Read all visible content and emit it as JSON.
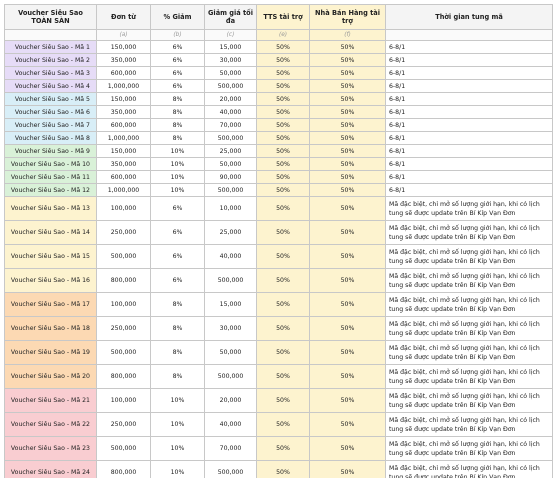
{
  "headers": {
    "voucher": "Voucher Siêu Sao",
    "voucher_sub": "TOÀN SÀN",
    "don_tu": "Đơn từ",
    "pct_giam": "% Giảm",
    "giam_gia": "Giảm giá tối đa",
    "tts": "TTS tài trợ",
    "nbh": "Nhà Bán Hàng tài trợ",
    "thoi_gian": "Thời gian tung mã"
  },
  "subheaders": [
    "(a)",
    "(b)",
    "(c)",
    "(e)",
    "(f)"
  ],
  "colors": {
    "purple": "#e6dcf7",
    "blue": "#d8eef7",
    "green": "#d9f1d8",
    "yellow": "#fdf3cf",
    "orange": "#fcd9b3",
    "pink": "#f9cdd1",
    "header": "#f4f4f4",
    "subheader": "#fafafa"
  },
  "rows": [
    {
      "name": "Voucher Siêu Sao - Mã 1",
      "don_tu": "150,000",
      "pct": "6%",
      "max": "15,000",
      "tts": "50%",
      "nbh": "50%",
      "time": "6-8/1",
      "group": "purple"
    },
    {
      "name": "Voucher Siêu Sao - Mã 2",
      "don_tu": "350,000",
      "pct": "6%",
      "max": "30,000",
      "tts": "50%",
      "nbh": "50%",
      "time": "6-8/1",
      "group": "purple"
    },
    {
      "name": "Voucher Siêu Sao - Mã 3",
      "don_tu": "600,000",
      "pct": "6%",
      "max": "50,000",
      "tts": "50%",
      "nbh": "50%",
      "time": "6-8/1",
      "group": "purple"
    },
    {
      "name": "Voucher Siêu Sao - Mã 4",
      "don_tu": "1,000,000",
      "pct": "6%",
      "max": "500,000",
      "tts": "50%",
      "nbh": "50%",
      "time": "6-8/1",
      "group": "purple"
    },
    {
      "name": "Voucher Siêu Sao - Mã 5",
      "don_tu": "150,000",
      "pct": "8%",
      "max": "20,000",
      "tts": "50%",
      "nbh": "50%",
      "time": "6-8/1",
      "group": "blue"
    },
    {
      "name": "Voucher Siêu Sao - Mã 6",
      "don_tu": "350,000",
      "pct": "8%",
      "max": "40,000",
      "tts": "50%",
      "nbh": "50%",
      "time": "6-8/1",
      "group": "blue"
    },
    {
      "name": "Voucher Siêu Sao - Mã 7",
      "don_tu": "600,000",
      "pct": "8%",
      "max": "70,000",
      "tts": "50%",
      "nbh": "50%",
      "time": "6-8/1",
      "group": "blue"
    },
    {
      "name": "Voucher Siêu Sao - Mã 8",
      "don_tu": "1,000,000",
      "pct": "8%",
      "max": "500,000",
      "tts": "50%",
      "nbh": "50%",
      "time": "6-8/1",
      "group": "blue"
    },
    {
      "name": "Voucher Siêu Sao - Mã 9",
      "don_tu": "150,000",
      "pct": "10%",
      "max": "25,000",
      "tts": "50%",
      "nbh": "50%",
      "time": "6-8/1",
      "group": "green"
    },
    {
      "name": "Voucher Siêu Sao - Mã 10",
      "don_tu": "350,000",
      "pct": "10%",
      "max": "50,000",
      "tts": "50%",
      "nbh": "50%",
      "time": "6-8/1",
      "group": "green"
    },
    {
      "name": "Voucher Siêu Sao - Mã 11",
      "don_tu": "600,000",
      "pct": "10%",
      "max": "90,000",
      "tts": "50%",
      "nbh": "50%",
      "time": "6-8/1",
      "group": "green"
    },
    {
      "name": "Voucher Siêu Sao - Mã 12",
      "don_tu": "1,000,000",
      "pct": "10%",
      "max": "500,000",
      "tts": "50%",
      "nbh": "50%",
      "time": "6-8/1",
      "group": "green"
    },
    {
      "name": "Voucher Siêu Sao - Mã 13",
      "don_tu": "100,000",
      "pct": "6%",
      "max": "10,000",
      "tts": "50%",
      "nbh": "50%",
      "time": "Mã đặc biệt, chỉ mở số lượng giới hạn, khi có lịch tung sẽ được update trên Bí Kíp Vạn Đơn",
      "group": "yellow"
    },
    {
      "name": "Voucher Siêu Sao - Mã 14",
      "don_tu": "250,000",
      "pct": "6%",
      "max": "25,000",
      "tts": "50%",
      "nbh": "50%",
      "time": "Mã đặc biệt, chỉ mở số lượng giới hạn, khi có lịch tung sẽ được update trên Bí Kíp Vạn Đơn",
      "group": "yellow"
    },
    {
      "name": "Voucher Siêu Sao - Mã 15",
      "don_tu": "500,000",
      "pct": "6%",
      "max": "40,000",
      "tts": "50%",
      "nbh": "50%",
      "time": "Mã đặc biệt, chỉ mở số lượng giới hạn, khi có lịch tung sẽ được update trên Bí Kíp Vạn Đơn",
      "group": "yellow"
    },
    {
      "name": "Voucher Siêu Sao - Mã 16",
      "don_tu": "800,000",
      "pct": "6%",
      "max": "500,000",
      "tts": "50%",
      "nbh": "50%",
      "time": "Mã đặc biệt, chỉ mở số lượng giới hạn, khi có lịch tung sẽ được update trên Bí Kíp Vạn Đơn",
      "group": "yellow"
    },
    {
      "name": "Voucher Siêu Sao - Mã 17",
      "don_tu": "100,000",
      "pct": "8%",
      "max": "15,000",
      "tts": "50%",
      "nbh": "50%",
      "time": "Mã đặc biệt, chỉ mở số lượng giới hạn, khi có lịch tung sẽ được update trên Bí Kíp Vạn Đơn",
      "group": "orange"
    },
    {
      "name": "Voucher Siêu Sao - Mã 18",
      "don_tu": "250,000",
      "pct": "8%",
      "max": "30,000",
      "tts": "50%",
      "nbh": "50%",
      "time": "Mã đặc biệt, chỉ mở số lượng giới hạn, khi có lịch tung sẽ được update trên Bí Kíp Vạn Đơn",
      "group": "orange"
    },
    {
      "name": "Voucher Siêu Sao - Mã 19",
      "don_tu": "500,000",
      "pct": "8%",
      "max": "50,000",
      "tts": "50%",
      "nbh": "50%",
      "time": "Mã đặc biệt, chỉ mở số lượng giới hạn, khi có lịch tung sẽ được update trên Bí Kíp Vạn Đơn",
      "group": "orange"
    },
    {
      "name": "Voucher Siêu Sao - Mã 20",
      "don_tu": "800,000",
      "pct": "8%",
      "max": "500,000",
      "tts": "50%",
      "nbh": "50%",
      "time": "Mã đặc biệt, chỉ mở số lượng giới hạn, khi có lịch tung sẽ được update trên Bí Kíp Vạn Đơn",
      "group": "orange"
    },
    {
      "name": "Voucher Siêu Sao - Mã 21",
      "don_tu": "100,000",
      "pct": "10%",
      "max": "20,000",
      "tts": "50%",
      "nbh": "50%",
      "time": "Mã đặc biệt, chỉ mở số lượng giới hạn, khi có lịch tung sẽ được update trên Bí Kíp Vạn Đơn",
      "group": "pink"
    },
    {
      "name": "Voucher Siêu Sao - Mã 22",
      "don_tu": "250,000",
      "pct": "10%",
      "max": "40,000",
      "tts": "50%",
      "nbh": "50%",
      "time": "Mã đặc biệt, chỉ mở số lượng giới hạn, khi có lịch tung sẽ được update trên Bí Kíp Vạn Đơn",
      "group": "pink"
    },
    {
      "name": "Voucher Siêu Sao - Mã 23",
      "don_tu": "500,000",
      "pct": "10%",
      "max": "70,000",
      "tts": "50%",
      "nbh": "50%",
      "time": "Mã đặc biệt, chỉ mở số lượng giới hạn, khi có lịch tung sẽ được update trên Bí Kíp Vạn Đơn",
      "group": "pink"
    },
    {
      "name": "Voucher Siêu Sao - Mã 24",
      "don_tu": "800,000",
      "pct": "10%",
      "max": "500,000",
      "tts": "50%",
      "nbh": "50%",
      "time": "Mã đặc biệt, chỉ mở số lượng giới hạn, khi có lịch tung sẽ được update trên Bí Kíp Vạn Đơn",
      "group": "pink"
    }
  ]
}
